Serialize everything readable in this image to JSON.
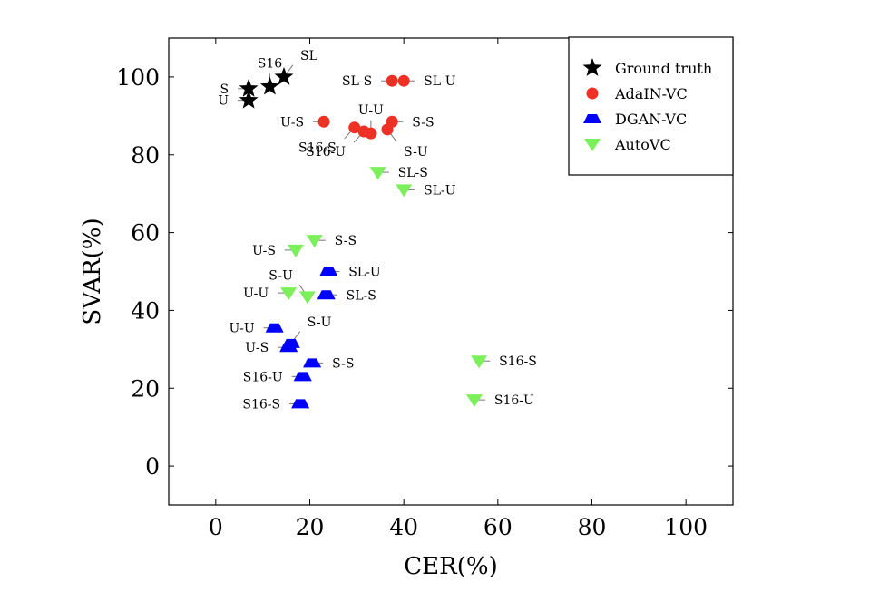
{
  "chart_data": {
    "type": "scatter",
    "xlabel": "CER(%)",
    "ylabel": "SVAR(%)",
    "xlim": [
      -10,
      110
    ],
    "ylim": [
      -10,
      110
    ],
    "xticks": [
      0,
      20,
      40,
      60,
      80,
      100
    ],
    "yticks": [
      0,
      20,
      40,
      60,
      80,
      100
    ],
    "legend_position": "top-right",
    "series": [
      {
        "name": "Ground truth",
        "marker": "star",
        "color": "#000000",
        "points": [
          {
            "label": "S",
            "x": 7,
            "y": 97,
            "label_side": "left"
          },
          {
            "label": "U",
            "x": 7,
            "y": 94,
            "label_side": "left"
          },
          {
            "label": "S16",
            "x": 11.5,
            "y": 97.5,
            "label_side": "above"
          },
          {
            "label": "SL",
            "x": 14.5,
            "y": 100,
            "label_side": "above-right"
          }
        ]
      },
      {
        "name": "AdaIN-VC",
        "marker": "circle",
        "color": "#ee3124",
        "points": [
          {
            "label": "SL-S",
            "x": 37.5,
            "y": 99,
            "label_side": "left"
          },
          {
            "label": "SL-U",
            "x": 40,
            "y": 99,
            "label_side": "right"
          },
          {
            "label": "U-S",
            "x": 23,
            "y": 88.5,
            "label_side": "left"
          },
          {
            "label": "U-U",
            "x": 33,
            "y": 85.5,
            "label_side": "above"
          },
          {
            "label": "S-S",
            "x": 37.5,
            "y": 88.5,
            "label_side": "right"
          },
          {
            "label": "S16-S",
            "x": 29.5,
            "y": 87,
            "label_side": "below-left"
          },
          {
            "label": "S16-U",
            "x": 31.5,
            "y": 86,
            "label_side": "below-left"
          },
          {
            "label": "S-U",
            "x": 36.5,
            "y": 86.5,
            "label_side": "below-right"
          }
        ]
      },
      {
        "name": "DGAN-VC",
        "marker": "trapezoid",
        "color": "#0000ff",
        "points": [
          {
            "label": "SL-U",
            "x": 24,
            "y": 50,
            "label_side": "right"
          },
          {
            "label": "SL-S",
            "x": 23.5,
            "y": 44,
            "label_side": "right"
          },
          {
            "label": "U-U",
            "x": 12.5,
            "y": 35.5,
            "label_side": "left"
          },
          {
            "label": "S-U",
            "x": 16,
            "y": 31.5,
            "label_side": "above-right"
          },
          {
            "label": "U-S",
            "x": 15.5,
            "y": 30.5,
            "label_side": "left"
          },
          {
            "label": "S-S",
            "x": 20.5,
            "y": 26.5,
            "label_side": "right"
          },
          {
            "label": "S16-U",
            "x": 18.5,
            "y": 23,
            "label_side": "left"
          },
          {
            "label": "S16-S",
            "x": 18,
            "y": 16,
            "label_side": "left"
          }
        ]
      },
      {
        "name": "AutoVC",
        "marker": "diamond",
        "color": "#7cf05a",
        "points": [
          {
            "label": "SL-S",
            "x": 34.5,
            "y": 75.5,
            "label_side": "right"
          },
          {
            "label": "SL-U",
            "x": 40,
            "y": 71,
            "label_side": "right"
          },
          {
            "label": "S-S",
            "x": 21,
            "y": 58,
            "label_side": "right"
          },
          {
            "label": "U-S",
            "x": 17,
            "y": 55.5,
            "label_side": "left"
          },
          {
            "label": "U-U",
            "x": 15.5,
            "y": 44.5,
            "label_side": "left"
          },
          {
            "label": "S-U",
            "x": 19.5,
            "y": 43.5,
            "label_side": "above-left"
          },
          {
            "label": "S16-S",
            "x": 56,
            "y": 27,
            "label_side": "right"
          },
          {
            "label": "S16-U",
            "x": 55,
            "y": 17,
            "label_side": "right"
          }
        ]
      }
    ]
  }
}
